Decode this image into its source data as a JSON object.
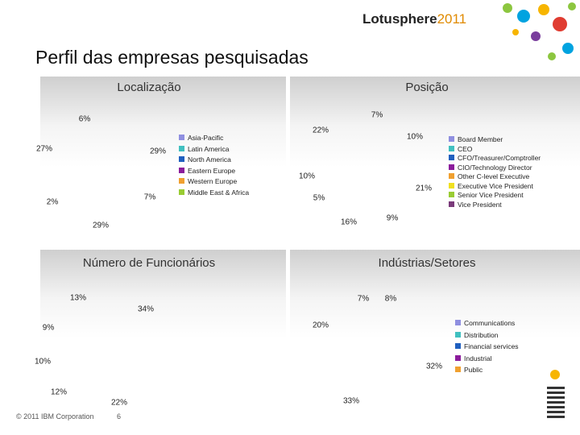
{
  "header": {
    "brand": "Lotusphere",
    "year": "2011"
  },
  "title": "Perfil das empresas pesquisadas",
  "panels": [
    {
      "title": "Localização",
      "labels": [
        "6%",
        "27%",
        "29%",
        "2%",
        "7%",
        "29%"
      ],
      "legend": [
        "Asia-Pacific",
        "Latin America",
        "North America",
        "Eastern Europe",
        "Western Europe",
        "Middle East & Africa"
      ]
    },
    {
      "title": "Posição",
      "labels": [
        "7%",
        "22%",
        "10%",
        "10%",
        "21%",
        "5%",
        "16%",
        "9%"
      ],
      "legend": [
        "Board Member",
        "CEO",
        "CFO/Treasurer/Comptroller",
        "CIO/Technology Director",
        "Other C-level Executive",
        "Executive Vice President",
        "Senior Vice President",
        "Vice President"
      ]
    },
    {
      "title": "Número de Funcionários",
      "labels": [
        "13%",
        "34%",
        "9%",
        "10%",
        "12%",
        "22%"
      ],
      "legend": []
    },
    {
      "title": "Indústrias/Setores",
      "labels": [
        "7%",
        "8%",
        "20%",
        "32%",
        "33%"
      ],
      "legend": [
        "Communications",
        "Distribution",
        "Financial services",
        "Industrial",
        "Public"
      ]
    }
  ],
  "footer": {
    "copyright": "© 2011 IBM Corporation",
    "page": "6"
  }
}
